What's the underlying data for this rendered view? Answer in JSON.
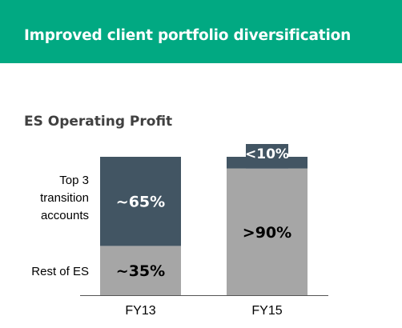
{
  "banner": {
    "title": "Improved client portfolio diversification"
  },
  "colors": {
    "banner": "#01A982",
    "top_accounts": "#425563",
    "rest": "#A6A6A6",
    "baseline": "#555555"
  },
  "chart_data": {
    "type": "bar",
    "stacked": true,
    "title": "ES Operating Profit",
    "xlabel": "",
    "ylabel": "",
    "categories": [
      "FY13",
      "FY15"
    ],
    "series": [
      {
        "name": "Rest of ES",
        "values": [
          35,
          90
        ],
        "labels": [
          "~35%",
          ">90%"
        ],
        "color": "#A6A6A6"
      },
      {
        "name": "Top 3 transition accounts",
        "values": [
          65,
          10
        ],
        "labels": [
          "~65%",
          "<10%"
        ],
        "color": "#425563"
      }
    ],
    "ylim": [
      0,
      100
    ],
    "grid": false,
    "legend": "left (category labels beside bars)"
  }
}
